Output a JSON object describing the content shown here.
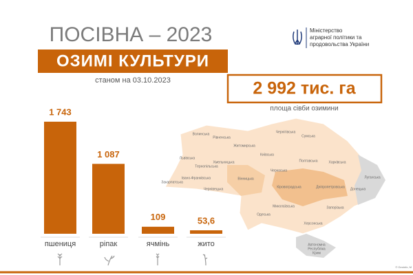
{
  "chart_data": {
    "type": "bar",
    "title": "ПОСІВНА – 2023",
    "subtitle": "ОЗИМІ КУЛЬТУРИ",
    "date_note": "станом на 03.10.2023",
    "ministry": [
      "Міністерство",
      "аграрної політики та",
      "продовольства України"
    ],
    "total": "2 992 тис. га",
    "total_note": "площа сівби озимини",
    "categories": [
      "пшениця",
      "ріпак",
      "ячмінь",
      "жито"
    ],
    "values": [
      1743,
      1087,
      109,
      53.6
    ],
    "value_labels": [
      "1 743",
      "1 087",
      "109",
      "53,6"
    ],
    "color": "#c8640a",
    "regions": [
      "Волинська",
      "Рівненська",
      "Житомирська",
      "Чернігівська",
      "Сумська",
      "Київська",
      "Львівська",
      "Тернопільська",
      "Хмельницька",
      "Полтавська",
      "Харківська",
      "Луганська",
      "Івано-Франківська",
      "Вінницька",
      "Черкаська",
      "Закарпатська",
      "Чернівецька",
      "Кіровоградська",
      "Дніпропетровська",
      "Донецька",
      "Миколаївська",
      "Запорізька",
      "Одеська",
      "Херсонська"
    ],
    "crimea": [
      "Автономна",
      "Республіка",
      "Крим"
    ],
    "credit": "© Geoinfo, M"
  }
}
